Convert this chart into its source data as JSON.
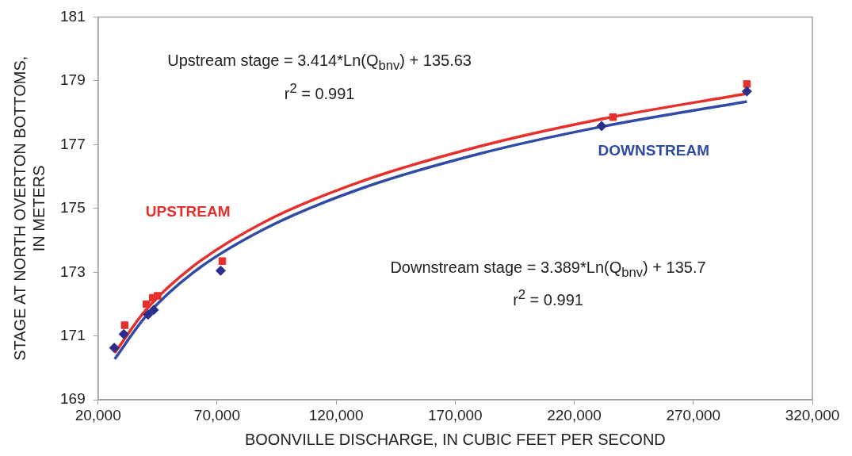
{
  "chart_data": {
    "type": "scatter",
    "xlabel": "BOONVILLE DISCHARGE, IN CUBIC FEET PER SECOND",
    "ylabel": "STAGE AT NORTH OVERTON BOTTOMS, IN METERS",
    "xlim": [
      20000,
      320000
    ],
    "xticks": [
      {
        "value": 20000,
        "label": "20,000"
      },
      {
        "value": 70000,
        "label": "70,000"
      },
      {
        "value": 120000,
        "label": "120,000"
      },
      {
        "value": 170000,
        "label": "170,000"
      },
      {
        "value": 220000,
        "label": "220,000"
      },
      {
        "value": 270000,
        "label": "270,000"
      },
      {
        "value": 320000,
        "label": "320,000"
      }
    ],
    "ylim": [
      169,
      181
    ],
    "yticks": [
      169,
      171,
      173,
      175,
      177,
      179,
      181
    ],
    "grid": false,
    "legend": false,
    "annotations": [
      "Upstream stage = 3.414*Ln(Q$_{bnv}$) + 135.63",
      "r$^{2}$ = 0.991",
      "Downstream stage = 3.389*Ln(Q$_{bnv}$) + 135.7",
      "r$^{2}$ = 0.991"
    ],
    "series": [
      {
        "type": "scatter",
        "marker": "diamond",
        "color": "#2b2e8a",
        "x": [
          26800,
          30800,
          41000,
          43400,
          71500,
          231500,
          292500
        ],
        "values": [
          170.63,
          171.06,
          171.67,
          171.82,
          173.05,
          177.58,
          178.67
        ]
      },
      {
        "type": "scatter",
        "marker": "square",
        "color": "#e5302d",
        "x": [
          31200,
          40300,
          43000,
          45000,
          72200,
          236300,
          292500
        ],
        "values": [
          171.34,
          172.0,
          172.2,
          172.26,
          173.35,
          177.86,
          178.9
        ]
      },
      {
        "type": "line",
        "name": "DOWNSTREAM",
        "marker": "none",
        "line_style": "solid",
        "color": "#2f4ba6",
        "x": [
          27000,
          40000,
          60000,
          90000,
          130000,
          180000,
          230000,
          292500
        ],
        "values": [
          170.28,
          171.61,
          172.99,
          174.36,
          175.61,
          176.71,
          177.54,
          178.35
        ]
      },
      {
        "type": "line",
        "name": "UPSTREAM",
        "marker": "none",
        "line_style": "solid",
        "color": "#e5302d",
        "x": [
          27000,
          40000,
          60000,
          90000,
          130000,
          180000,
          230000,
          292500
        ],
        "values": [
          170.47,
          171.81,
          173.19,
          174.58,
          175.83,
          176.94,
          177.78,
          178.6
        ]
      }
    ]
  }
}
